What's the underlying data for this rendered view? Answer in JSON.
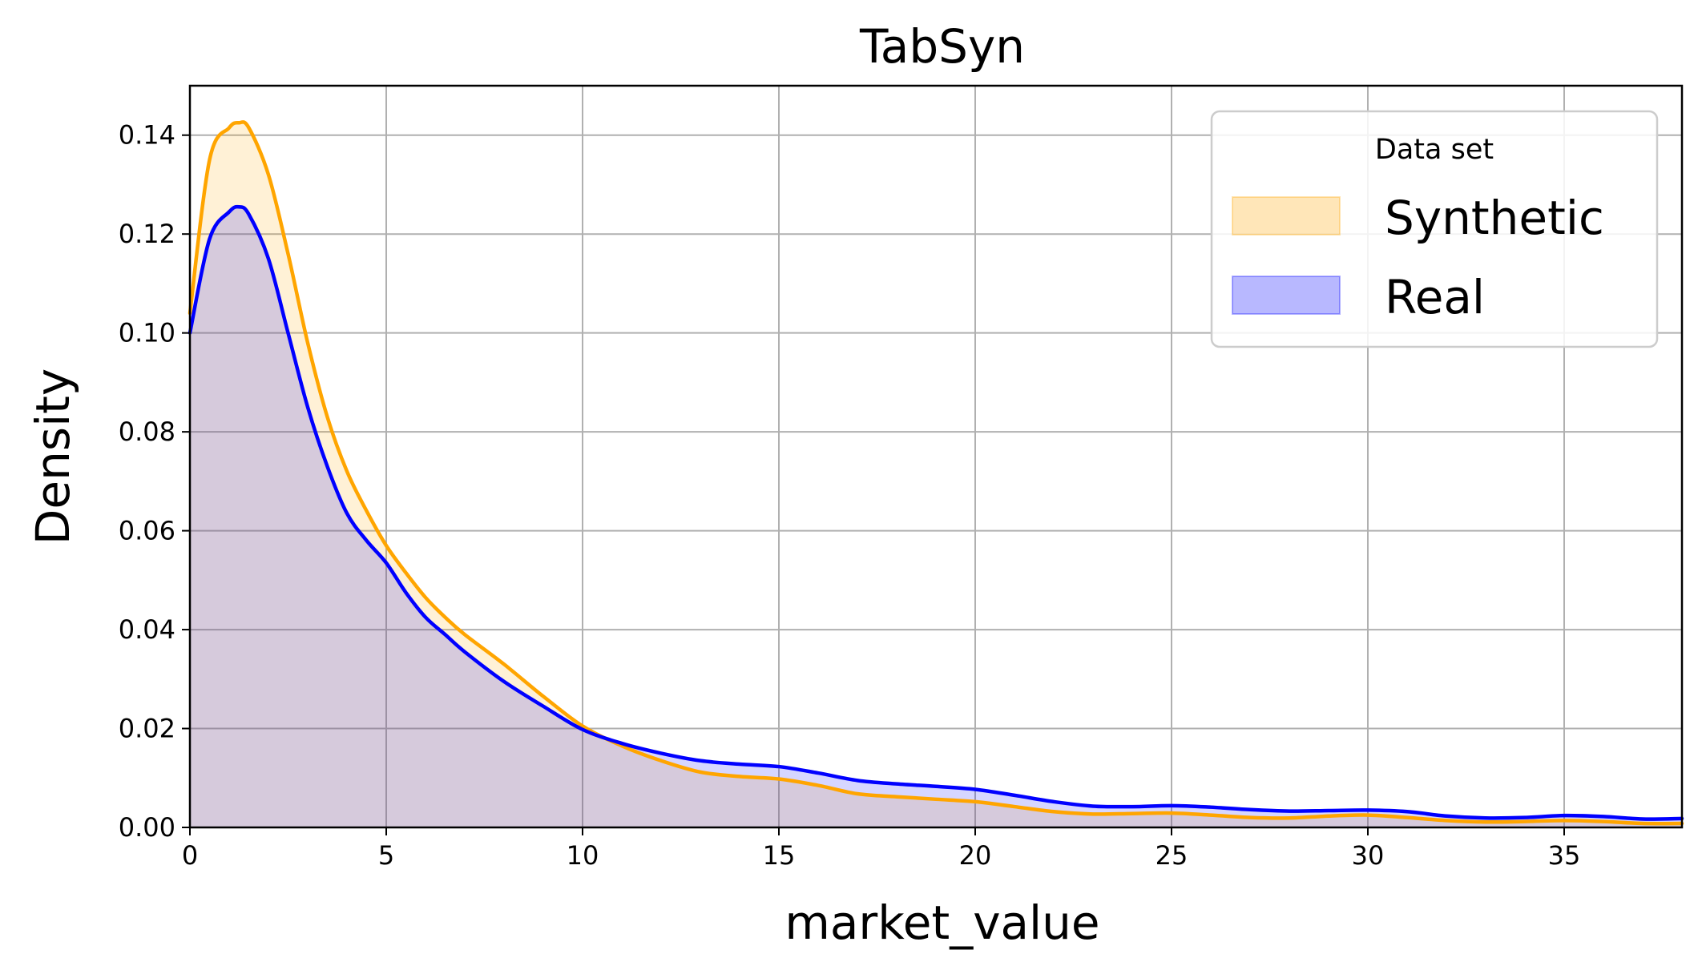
{
  "chart_data": {
    "type": "area",
    "title": "TabSyn",
    "xlabel": "market_value",
    "ylabel": "Density",
    "xlim": [
      0,
      38
    ],
    "ylim": [
      0,
      0.15
    ],
    "xticks": [
      0,
      5,
      10,
      15,
      20,
      25,
      30,
      35
    ],
    "yticks": [
      0.0,
      0.02,
      0.04,
      0.06,
      0.08,
      0.1,
      0.12,
      0.14
    ],
    "xtick_labels": [
      "0",
      "5",
      "10",
      "15",
      "20",
      "25",
      "30",
      "35"
    ],
    "ytick_labels": [
      "0.00",
      "0.02",
      "0.04",
      "0.06",
      "0.08",
      "0.10",
      "0.12",
      "0.14"
    ],
    "grid": true,
    "legend": {
      "title": "Data set",
      "placement": "top-right"
    },
    "series": [
      {
        "name": "Synthetic",
        "line_color": "#ffa500",
        "fill_color": "#ffa500",
        "x": [
          0,
          0.5,
          1,
          1.25,
          1.5,
          2,
          2.5,
          3,
          3.5,
          4,
          4.5,
          5,
          5.5,
          6,
          6.5,
          7,
          8,
          9,
          10,
          11,
          12,
          13,
          14,
          15,
          16,
          17,
          18,
          19,
          20,
          21,
          22,
          23,
          24,
          25,
          26,
          27,
          28,
          29,
          30,
          31,
          32,
          33,
          34,
          35,
          36,
          37,
          38
        ],
        "y": [
          0.104,
          0.135,
          0.1415,
          0.1425,
          0.1415,
          0.132,
          0.116,
          0.098,
          0.083,
          0.072,
          0.064,
          0.057,
          0.0515,
          0.0465,
          0.0425,
          0.039,
          0.033,
          0.0265,
          0.0205,
          0.0165,
          0.0135,
          0.0112,
          0.0103,
          0.0098,
          0.0085,
          0.0068,
          0.0062,
          0.0057,
          0.0052,
          0.0042,
          0.0032,
          0.0027,
          0.0028,
          0.0029,
          0.0025,
          0.002,
          0.0019,
          0.0023,
          0.0025,
          0.002,
          0.0014,
          0.0011,
          0.0012,
          0.0014,
          0.0012,
          0.0008,
          0.0008
        ]
      },
      {
        "name": "Real",
        "line_color": "#0000ff",
        "fill_color": "#0000ff",
        "x": [
          0,
          0.5,
          1,
          1.25,
          1.5,
          2,
          2.5,
          3,
          3.5,
          4,
          4.5,
          5,
          5.5,
          6,
          6.5,
          7,
          8,
          9,
          10,
          11,
          12,
          13,
          14,
          15,
          16,
          17,
          18,
          19,
          20,
          21,
          22,
          23,
          24,
          25,
          26,
          27,
          28,
          29,
          30,
          31,
          32,
          33,
          34,
          35,
          36,
          37,
          38
        ],
        "y": [
          0.1,
          0.119,
          0.1245,
          0.1255,
          0.124,
          0.115,
          0.1,
          0.085,
          0.073,
          0.0635,
          0.058,
          0.0535,
          0.0475,
          0.0425,
          0.039,
          0.0355,
          0.0295,
          0.0245,
          0.0198,
          0.017,
          0.015,
          0.0135,
          0.0128,
          0.0123,
          0.011,
          0.0095,
          0.0088,
          0.0083,
          0.0077,
          0.0065,
          0.0052,
          0.0043,
          0.0042,
          0.0044,
          0.0041,
          0.0036,
          0.0033,
          0.0034,
          0.0035,
          0.0032,
          0.0023,
          0.0019,
          0.002,
          0.0024,
          0.0022,
          0.0017,
          0.0018
        ]
      }
    ]
  }
}
